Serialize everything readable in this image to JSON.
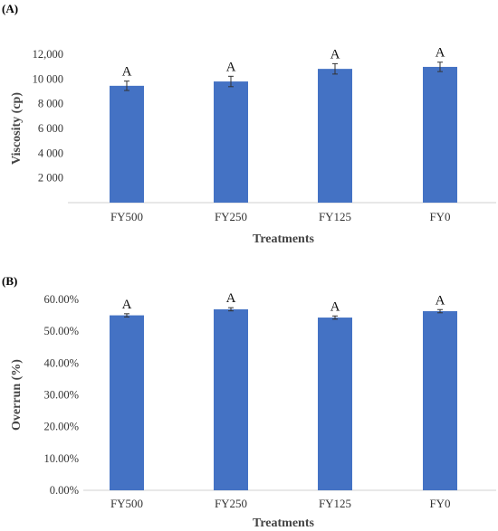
{
  "chart_data": [
    {
      "type": "bar",
      "panel_label": "(A)",
      "categories": [
        "FY500",
        "FY250",
        "FY125",
        "FY0"
      ],
      "values": [
        9450,
        9800,
        10820,
        10980
      ],
      "errors": [
        380,
        420,
        420,
        380
      ],
      "significance": [
        "A",
        "A",
        "A",
        "A"
      ],
      "xlabel": "Treatments",
      "ylabel": "Viscosity (cp)",
      "ylim": [
        0,
        12000
      ],
      "yticks": [
        2000,
        4000,
        6000,
        8000,
        10000,
        12000
      ],
      "ytick_labels": [
        "2 000",
        "4 000",
        "6 000",
        "8 000",
        "10 000",
        "12,000"
      ],
      "grid": false,
      "bar_color": "#4472C4"
    },
    {
      "type": "bar",
      "panel_label": "(B)",
      "categories": [
        "FY500",
        "FY250",
        "FY125",
        "FY0"
      ],
      "values": [
        0.55,
        0.569,
        0.543,
        0.563
      ],
      "errors": [
        0.005,
        0.005,
        0.005,
        0.005
      ],
      "significance": [
        "A",
        "A",
        "A",
        "A"
      ],
      "xlabel": "Treatments",
      "ylabel": "Overrun (%)",
      "ylim": [
        0,
        0.6
      ],
      "yticks": [
        0,
        0.1,
        0.2,
        0.3,
        0.4,
        0.5,
        0.6
      ],
      "ytick_labels": [
        "0.00%",
        "10.00%",
        "20.00%",
        "30.00%",
        "40.00%",
        "50.00%",
        "60.00%"
      ],
      "grid": false,
      "bar_color": "#4472C4"
    }
  ]
}
